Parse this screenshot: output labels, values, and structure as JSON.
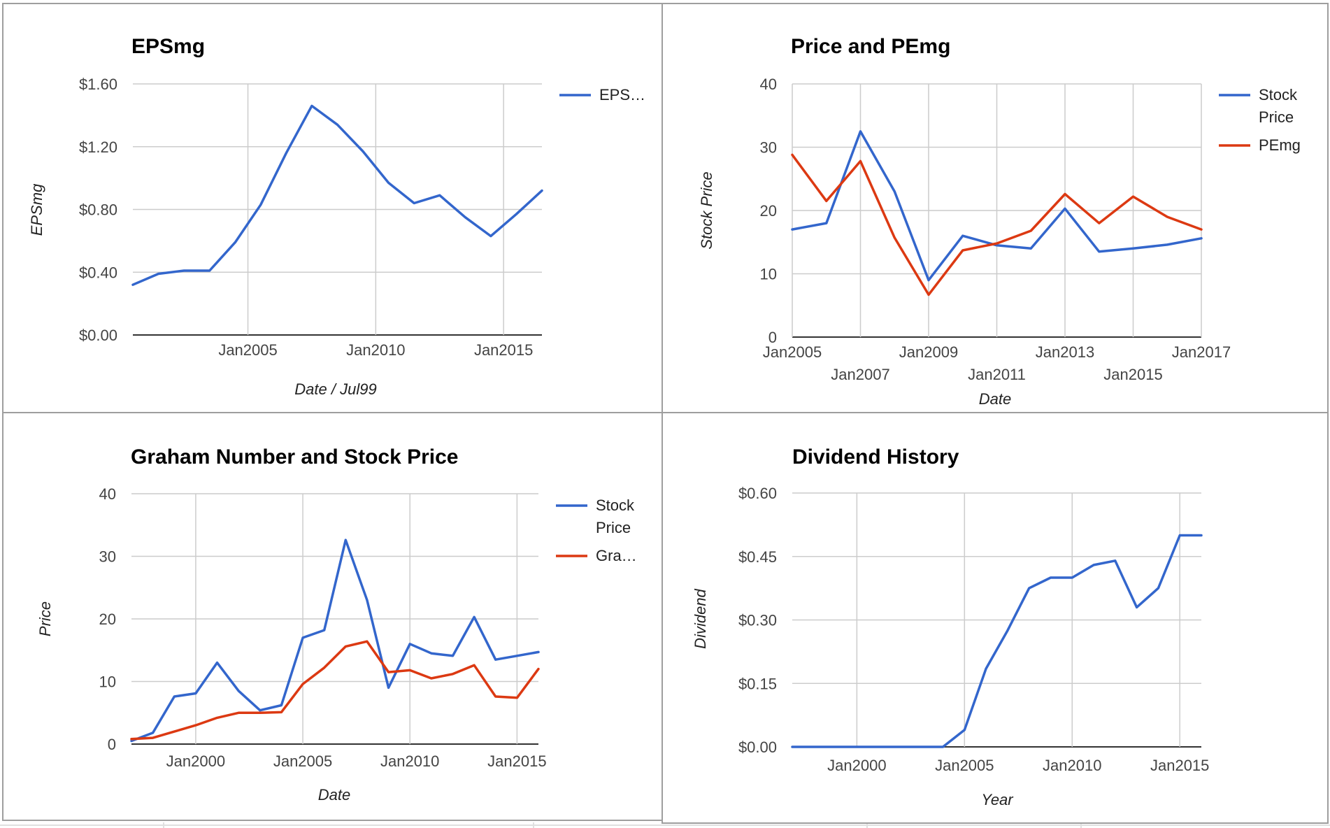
{
  "colors": {
    "blue": "#3366cc",
    "red": "#dc3912",
    "grid": "#cccccc",
    "baseline": "#333333"
  },
  "chart_data": [
    {
      "id": "eps",
      "type": "line",
      "title": "EPSmg",
      "xlabel": "Date / Jul99",
      "ylabel": "EPSmg",
      "xlim": [
        2000.5,
        2016.5
      ],
      "ylim": [
        0,
        1.6
      ],
      "x_ticks": [
        {
          "x": 2005,
          "label": "Jan2005"
        },
        {
          "x": 2010,
          "label": "Jan2010"
        },
        {
          "x": 2015,
          "label": "Jan2015"
        }
      ],
      "y_ticks": [
        {
          "y": 0,
          "label": "$0.00"
        },
        {
          "y": 0.4,
          "label": "$0.40"
        },
        {
          "y": 0.8,
          "label": "$0.80"
        },
        {
          "y": 1.2,
          "label": "$1.20"
        },
        {
          "y": 1.6,
          "label": "$1.60"
        }
      ],
      "legend": "right",
      "series": [
        {
          "name": "EPS…",
          "color": "#3366cc",
          "x": [
            2000.5,
            2001.5,
            2002.5,
            2003.5,
            2004.5,
            2005.5,
            2006.5,
            2007.5,
            2008.5,
            2009.5,
            2010.5,
            2011.5,
            2012.5,
            2013.5,
            2014.5,
            2015.5,
            2016.5
          ],
          "y": [
            0.32,
            0.39,
            0.41,
            0.41,
            0.59,
            0.83,
            1.16,
            1.46,
            1.34,
            1.17,
            0.97,
            0.84,
            0.89,
            0.75,
            0.63,
            0.77,
            0.92
          ]
        }
      ]
    },
    {
      "id": "price",
      "type": "line",
      "title": "Price and PEmg",
      "xlabel": "Date",
      "ylabel": "Stock Price",
      "xlim": [
        2005,
        2017
      ],
      "ylim": [
        0,
        40
      ],
      "x_ticks": [
        {
          "x": 2005,
          "label": "Jan2005",
          "row": 0
        },
        {
          "x": 2007,
          "label": "Jan2007",
          "row": 1
        },
        {
          "x": 2009,
          "label": "Jan2009",
          "row": 0
        },
        {
          "x": 2011,
          "label": "Jan2011",
          "row": 1
        },
        {
          "x": 2013,
          "label": "Jan2013",
          "row": 0
        },
        {
          "x": 2015,
          "label": "Jan2015",
          "row": 1
        },
        {
          "x": 2017,
          "label": "Jan2017",
          "row": 0
        }
      ],
      "y_ticks": [
        {
          "y": 0,
          "label": "0"
        },
        {
          "y": 10,
          "label": "10"
        },
        {
          "y": 20,
          "label": "20"
        },
        {
          "y": 30,
          "label": "30"
        },
        {
          "y": 40,
          "label": "40"
        }
      ],
      "legend": "right",
      "series": [
        {
          "name": "Stock Price",
          "name_lines": [
            "Stock",
            "Price"
          ],
          "color": "#3366cc",
          "x": [
            2005,
            2006,
            2007,
            2008,
            2009,
            2010,
            2011,
            2012,
            2013,
            2014,
            2015,
            2016,
            2017
          ],
          "y": [
            17,
            18,
            32.5,
            23,
            9,
            16,
            14.5,
            14,
            20.3,
            13.5,
            14,
            14.6,
            15.6
          ]
        },
        {
          "name": "PEmg",
          "name_lines": [
            "PEmg"
          ],
          "color": "#dc3912",
          "x": [
            2005,
            2006,
            2007,
            2008,
            2009,
            2010,
            2011,
            2012,
            2013,
            2014,
            2015,
            2016,
            2017
          ],
          "y": [
            28.8,
            21.5,
            27.8,
            15.7,
            6.7,
            13.7,
            14.8,
            16.8,
            22.6,
            18,
            22.2,
            19,
            17
          ]
        }
      ]
    },
    {
      "id": "graham",
      "type": "line",
      "title": "Graham Number and Stock Price",
      "xlabel": "Date",
      "ylabel": "Price",
      "xlim": [
        1997,
        2016
      ],
      "ylim": [
        0,
        40
      ],
      "x_ticks": [
        {
          "x": 2000,
          "label": "Jan2000"
        },
        {
          "x": 2005,
          "label": "Jan2005"
        },
        {
          "x": 2010,
          "label": "Jan2010"
        },
        {
          "x": 2015,
          "label": "Jan2015"
        }
      ],
      "y_ticks": [
        {
          "y": 0,
          "label": "0"
        },
        {
          "y": 10,
          "label": "10"
        },
        {
          "y": 20,
          "label": "20"
        },
        {
          "y": 30,
          "label": "30"
        },
        {
          "y": 40,
          "label": "40"
        }
      ],
      "legend": "right",
      "series": [
        {
          "name": "Stock Price",
          "name_lines": [
            "Stock",
            "Price"
          ],
          "color": "#3366cc",
          "x": [
            1997,
            1998,
            1999,
            2000,
            2001,
            2002,
            2003,
            2004,
            2005,
            2006,
            2007,
            2008,
            2009,
            2010,
            2011,
            2012,
            2013,
            2014,
            2015,
            2016
          ],
          "y": [
            0.5,
            1.8,
            7.6,
            8.1,
            13,
            8.5,
            5.4,
            6.2,
            17,
            18.2,
            32.6,
            23,
            9,
            16,
            14.5,
            14.1,
            20.3,
            13.5,
            14.1,
            14.7
          ]
        },
        {
          "name": "Gra…",
          "name_lines": [
            "Gra…"
          ],
          "color": "#dc3912",
          "x": [
            1997,
            1998,
            1999,
            2000,
            2001,
            2002,
            2003,
            2004,
            2005,
            2006,
            2007,
            2008,
            2009,
            2010,
            2011,
            2012,
            2013,
            2014,
            2015,
            2016
          ],
          "y": [
            0.8,
            1,
            2,
            3,
            4.2,
            5,
            5,
            5.1,
            9.6,
            12.2,
            15.6,
            16.4,
            11.5,
            11.8,
            10.5,
            11.2,
            12.6,
            7.6,
            7.4,
            12
          ]
        }
      ]
    },
    {
      "id": "dividend",
      "type": "line",
      "title": "Dividend History",
      "xlabel": "Year",
      "ylabel": "Dividend",
      "xlim": [
        1997,
        2016
      ],
      "ylim": [
        0,
        0.6
      ],
      "x_ticks": [
        {
          "x": 2000,
          "label": "Jan2000"
        },
        {
          "x": 2005,
          "label": "Jan2005"
        },
        {
          "x": 2010,
          "label": "Jan2010"
        },
        {
          "x": 2015,
          "label": "Jan2015"
        }
      ],
      "y_ticks": [
        {
          "y": 0,
          "label": "$0.00"
        },
        {
          "y": 0.15,
          "label": "$0.15"
        },
        {
          "y": 0.3,
          "label": "$0.30"
        },
        {
          "y": 0.45,
          "label": "$0.45"
        },
        {
          "y": 0.6,
          "label": "$0.60"
        }
      ],
      "legend": "none",
      "series": [
        {
          "name": "",
          "color": "#3366cc",
          "x": [
            1997,
            1998,
            1999,
            2000,
            2001,
            2002,
            2003,
            2004,
            2005,
            2006,
            2007,
            2008,
            2009,
            2010,
            2011,
            2012,
            2013,
            2014,
            2015,
            2016
          ],
          "y": [
            0,
            0,
            0,
            0,
            0,
            0,
            0,
            0,
            0.04,
            0.185,
            0.275,
            0.375,
            0.4,
            0.4,
            0.43,
            0.44,
            0.33,
            0.375,
            0.5,
            0.5
          ]
        }
      ]
    }
  ]
}
